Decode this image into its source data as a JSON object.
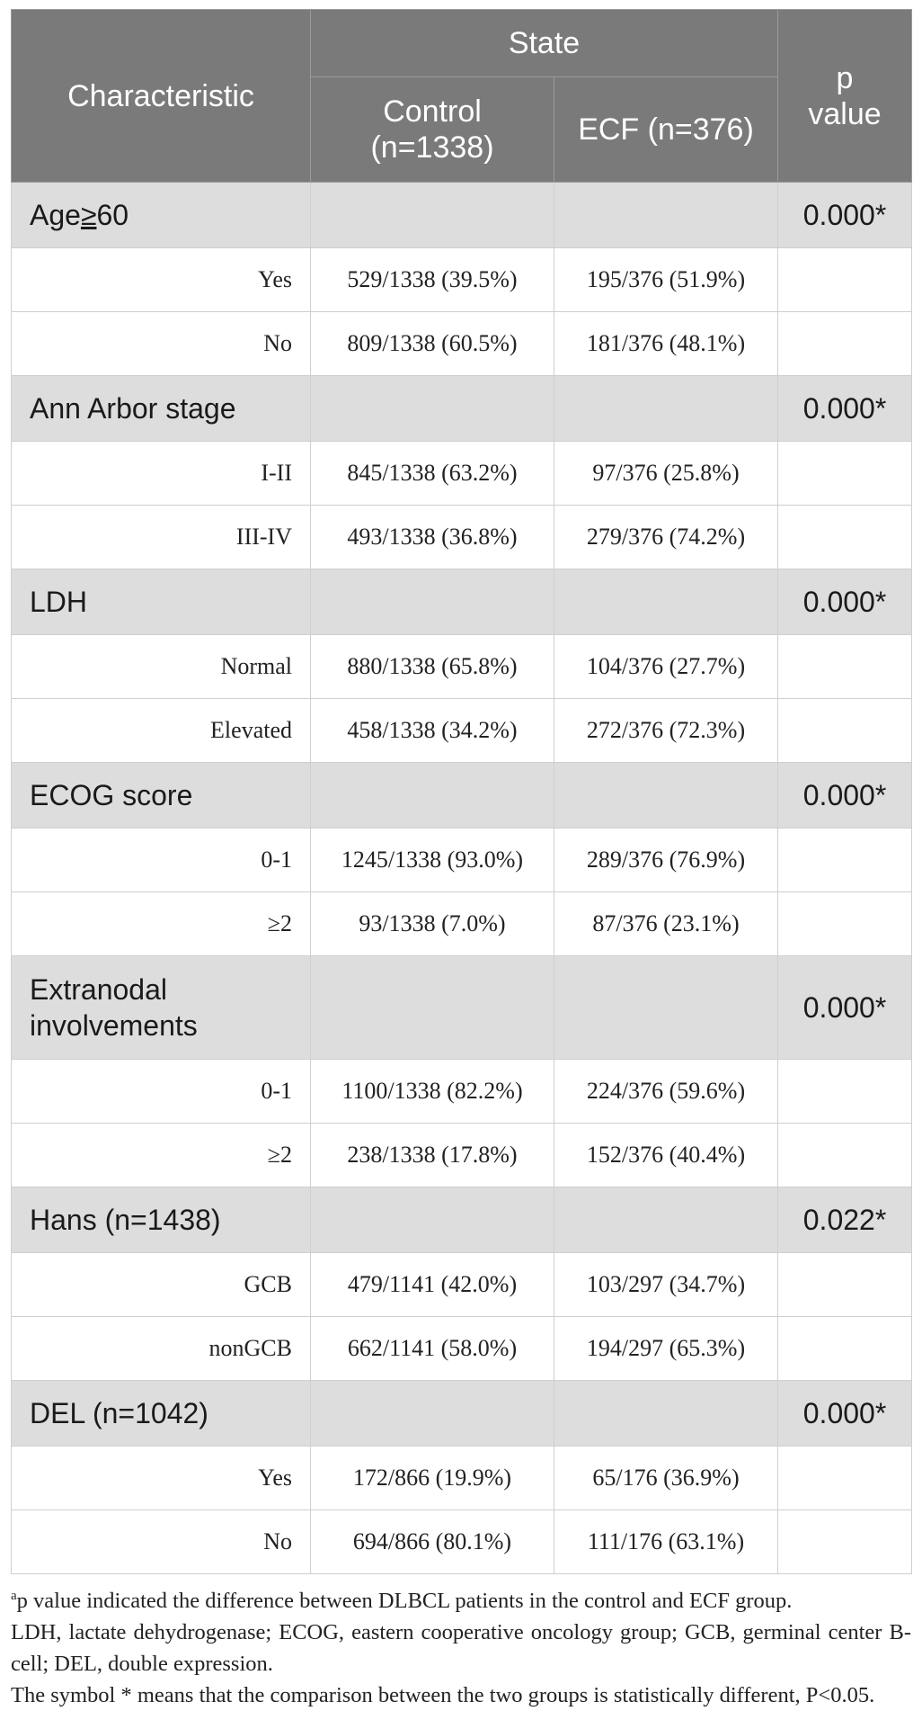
{
  "header": {
    "characteristic": "Characteristic",
    "state": "State",
    "control": "Control (n=1338)",
    "ecf": "ECF (n=376)",
    "p_value": "p value"
  },
  "sections": [
    {
      "name": "Age≥60",
      "p": "0.000*",
      "rows": [
        {
          "label": "Yes",
          "control": "529/1338 (39.5%)",
          "ecf": "195/376 (51.9%)"
        },
        {
          "label": "No",
          "control": "809/1338 (60.5%)",
          "ecf": "181/376 (48.1%)"
        }
      ]
    },
    {
      "name": "Ann Arbor stage",
      "p": "0.000*",
      "rows": [
        {
          "label": "I-II",
          "control": "845/1338 (63.2%)",
          "ecf": "97/376 (25.8%)"
        },
        {
          "label": "III-IV",
          "control": "493/1338 (36.8%)",
          "ecf": "279/376 (74.2%)"
        }
      ]
    },
    {
      "name": "LDH",
      "p": "0.000*",
      "rows": [
        {
          "label": "Normal",
          "control": "880/1338 (65.8%)",
          "ecf": "104/376 (27.7%)"
        },
        {
          "label": "Elevated",
          "control": "458/1338 (34.2%)",
          "ecf": "272/376 (72.3%)"
        }
      ]
    },
    {
      "name": "ECOG score",
      "p": "0.000*",
      "rows": [
        {
          "label": "0-1",
          "control": "1245/1338 (93.0%)",
          "ecf": "289/376 (76.9%)"
        },
        {
          "label": "≥2",
          "control": "93/1338 (7.0%)",
          "ecf": "87/376 (23.1%)"
        }
      ]
    },
    {
      "name": "Extranodal involvements",
      "p": "0.000*",
      "rows": [
        {
          "label": "0-1",
          "control": "1100/1338 (82.2%)",
          "ecf": "224/376 (59.6%)"
        },
        {
          "label": "≥2",
          "control": "238/1338 (17.8%)",
          "ecf": "152/376 (40.4%)"
        }
      ]
    },
    {
      "name": "Hans (n=1438)",
      "p": "0.022*",
      "rows": [
        {
          "label": "GCB",
          "control": "479/1141 (42.0%)",
          "ecf": "103/297 (34.7%)"
        },
        {
          "label": "nonGCB",
          "control": "662/1141 (58.0%)",
          "ecf": "194/297 (65.3%)"
        }
      ]
    },
    {
      "name": "DEL (n=1042)",
      "p": "0.000*",
      "rows": [
        {
          "label": "Yes",
          "control": "172/866 (19.9%)",
          "ecf": "65/176 (36.9%)"
        },
        {
          "label": "No",
          "control": "694/866 (80.1%)",
          "ecf": "111/176 (63.1%)"
        }
      ]
    }
  ],
  "age_label_prefix": "Age",
  "age_label_symbol": "≥",
  "age_label_suffix": "60",
  "footnotes": {
    "a_marker": "a",
    "a_text": "p value indicated the difference between DLBCL patients in the control and ECF group.",
    "abbreviations": "LDH, lactate dehydrogenase; ECOG, eastern cooperative oncology group; GCB, germinal center B-cell; DEL, double expression.",
    "symbol_note": "The symbol * means that the comparison between the two groups is statistically different, P<0.05."
  }
}
